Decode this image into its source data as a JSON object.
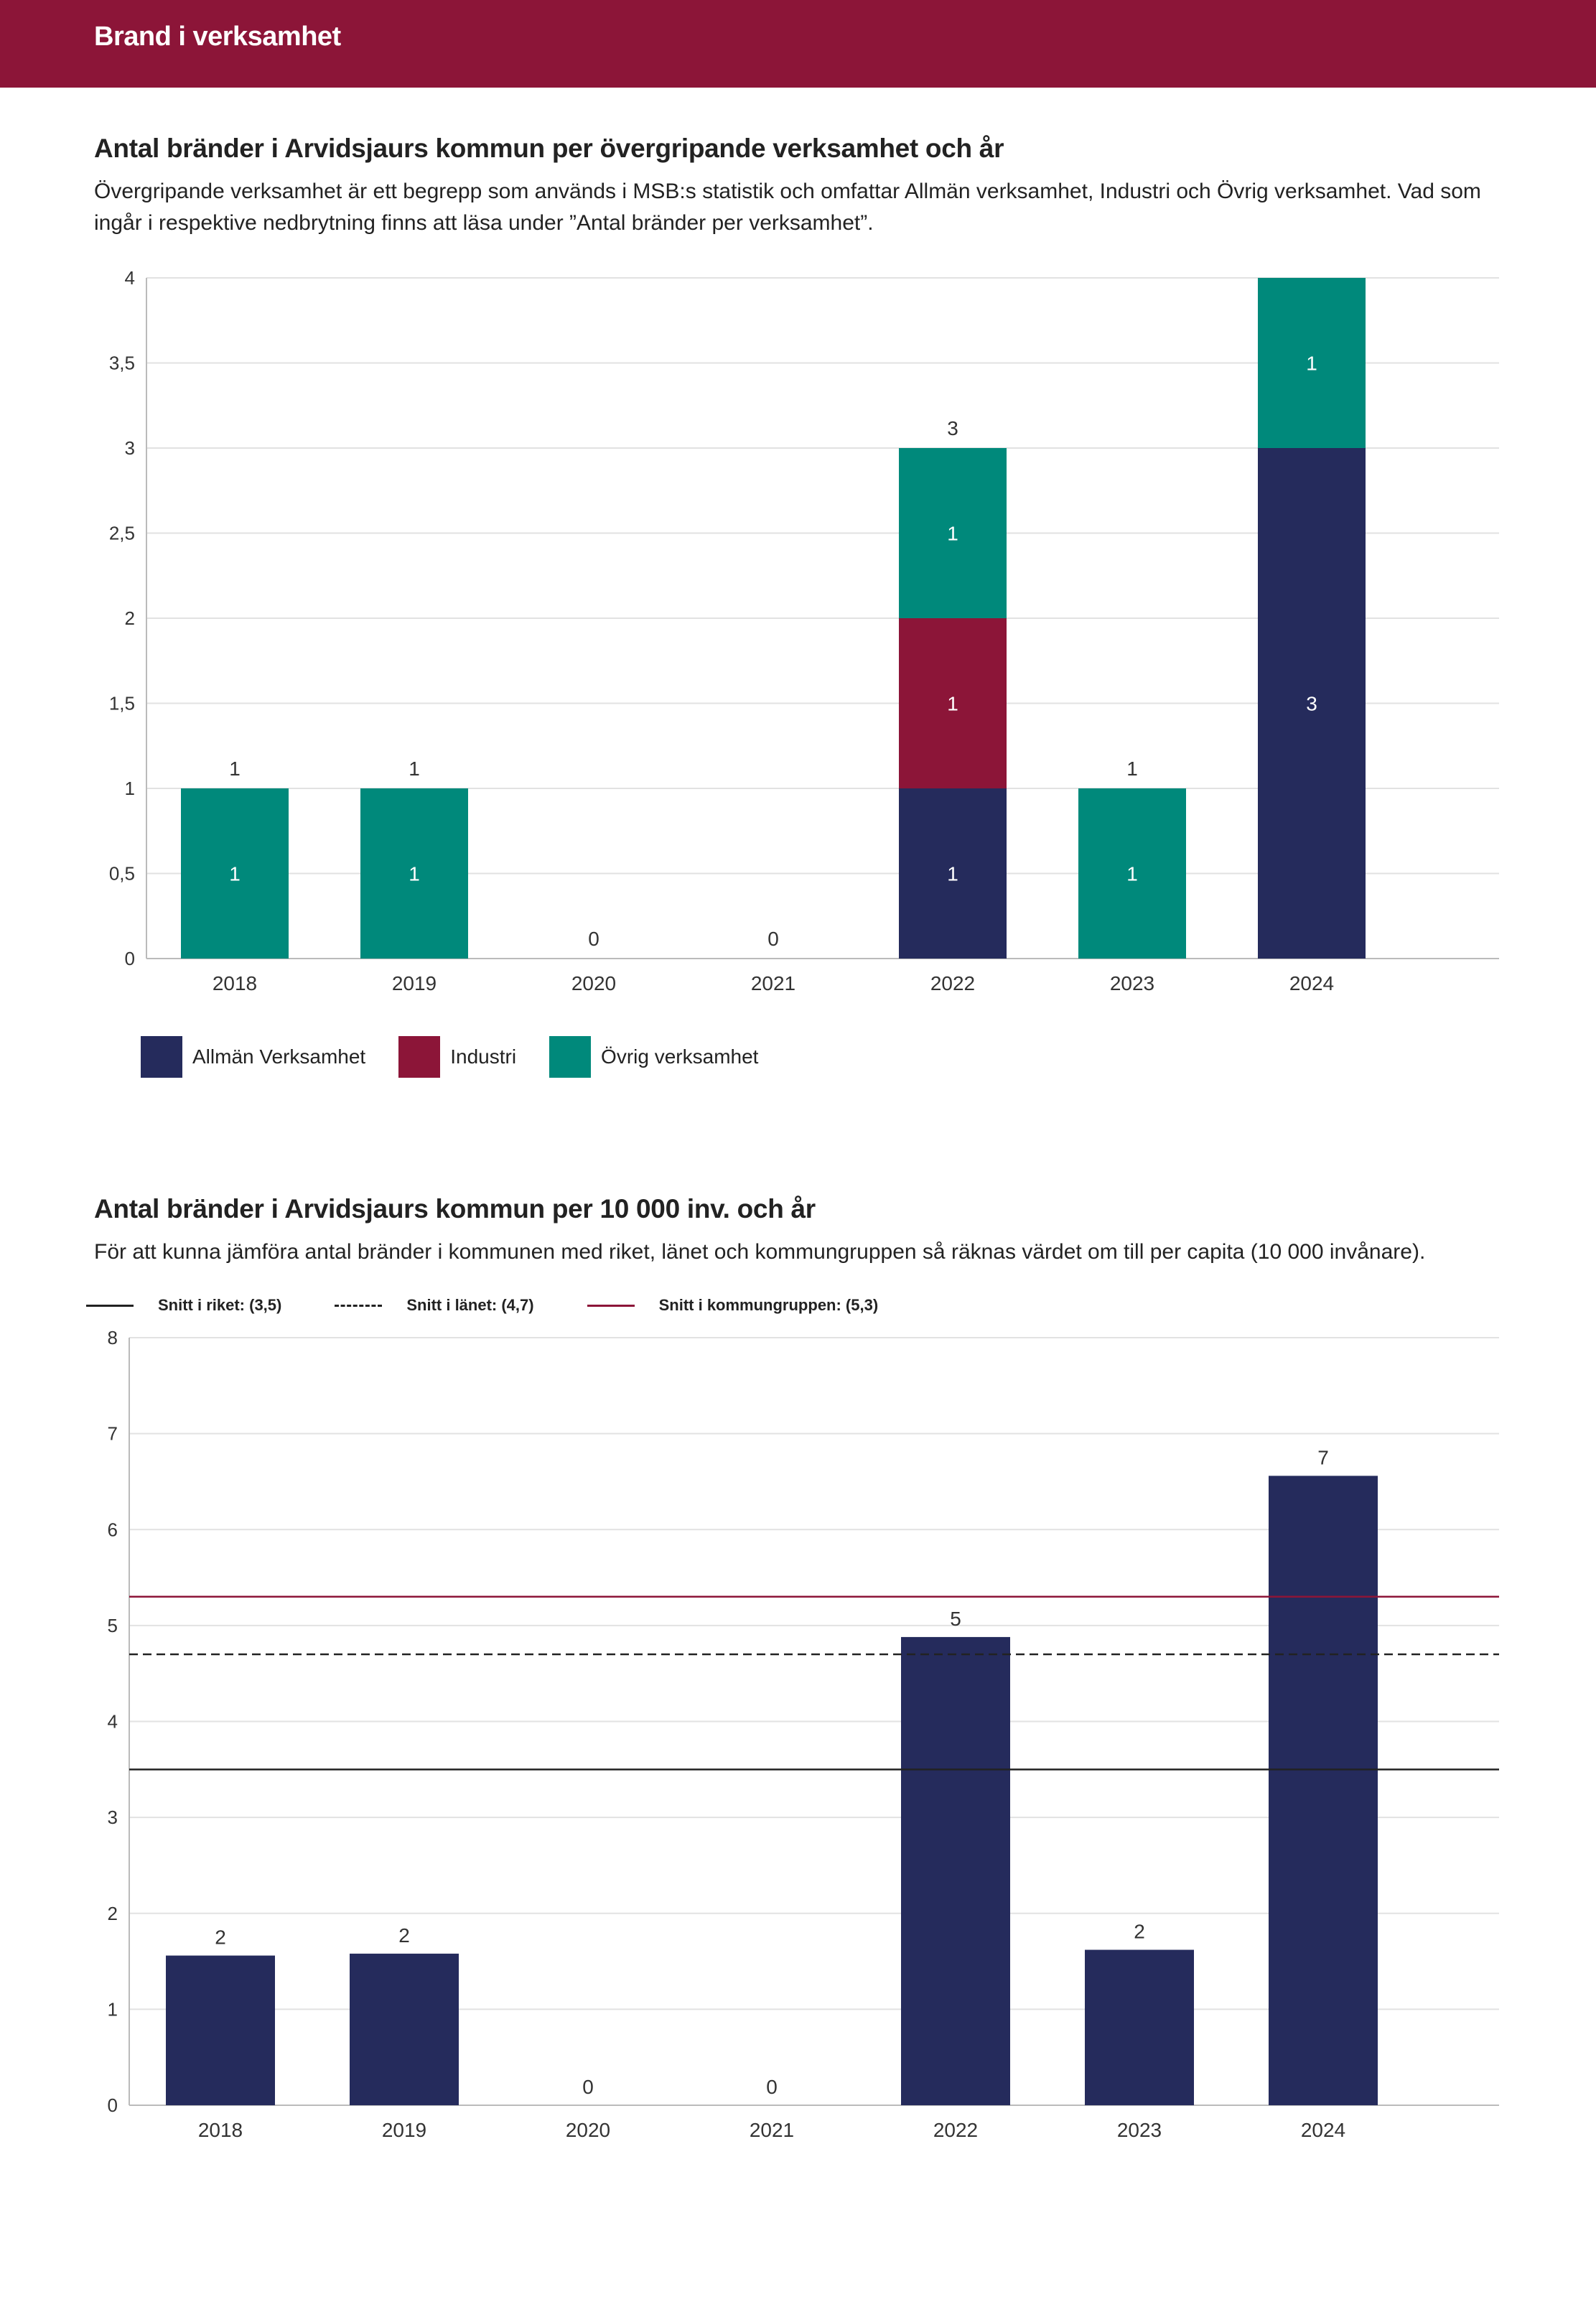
{
  "header": {
    "title": "Brand i verksamhet"
  },
  "colors": {
    "brand": "#8c1538",
    "allman": "#252b5c",
    "industri": "#8c1538",
    "ovrig": "#00897b",
    "per_capita_bar": "#252b5c",
    "snitt_riket": "#222222",
    "snitt_lanet": "#222222",
    "snitt_kommungrupp": "#8c1538"
  },
  "section1": {
    "title": "Antal bränder i Arvidsjaurs kommun per övergripande verksamhet och år",
    "description": "Övergripande verksamhet är ett begrepp som används i MSB:s statistik och omfattar Allmän verksamhet, Industri och Övrig verksamhet. Vad som ingår i respektive nedbrytning finns att läsa under ”Antal bränder per verksamhet”."
  },
  "section2": {
    "title": "Antal bränder i Arvidsjaurs kommun per 10 000 inv. och år",
    "description": "För att kunna jämföra antal bränder i kommunen med riket, länet och kommungruppen så räknas värdet om till per capita (10 000 invånare)."
  },
  "chart_data": [
    {
      "type": "bar",
      "stacked": true,
      "title": "Antal bränder i Arvidsjaurs kommun per övergripande verksamhet och år",
      "categories": [
        "2018",
        "2019",
        "2020",
        "2021",
        "2022",
        "2023",
        "2024"
      ],
      "series": [
        {
          "name": "Allmän Verksamhet",
          "values": [
            0,
            0,
            0,
            0,
            1,
            0,
            3
          ]
        },
        {
          "name": "Industri",
          "values": [
            0,
            0,
            0,
            0,
            1,
            0,
            0
          ]
        },
        {
          "name": "Övrig verksamhet",
          "values": [
            1,
            1,
            0,
            0,
            1,
            1,
            1
          ]
        }
      ],
      "totals": [
        1,
        1,
        0,
        0,
        3,
        1,
        null
      ],
      "ylim": [
        0,
        4
      ],
      "yticks": [
        0,
        0.5,
        1,
        1.5,
        2,
        2.5,
        3,
        3.5,
        4
      ],
      "ytick_labels": [
        "0",
        "0,5",
        "1",
        "1,5",
        "2",
        "2,5",
        "3",
        "3,5",
        "4"
      ],
      "grid": true,
      "legend": "bottom-left"
    },
    {
      "type": "bar",
      "title": "Antal bränder i Arvidsjaurs kommun per 10 000 inv. och år",
      "categories": [
        "2018",
        "2019",
        "2020",
        "2021",
        "2022",
        "2023",
        "2024"
      ],
      "values": [
        1.56,
        1.58,
        0,
        0,
        4.88,
        1.62,
        6.56
      ],
      "value_labels": [
        "2",
        "2",
        "0",
        "0",
        "5",
        "2",
        "7"
      ],
      "reference_lines": [
        {
          "name": "Snitt i riket: (3,5)",
          "value": 3.5,
          "style": "solid"
        },
        {
          "name": "Snitt i länet: (4,7)",
          "value": 4.7,
          "style": "dashed"
        },
        {
          "name": "Snitt i kommungruppen: (5,3)",
          "value": 5.3,
          "style": "solid-red"
        }
      ],
      "ylim": [
        0,
        8
      ],
      "yticks": [
        0,
        1,
        2,
        3,
        4,
        5,
        6,
        7,
        8
      ],
      "ytick_labels": [
        "0",
        "1",
        "2",
        "3",
        "4",
        "5",
        "6",
        "7",
        "8"
      ],
      "grid": true,
      "legend": "top-left"
    }
  ]
}
